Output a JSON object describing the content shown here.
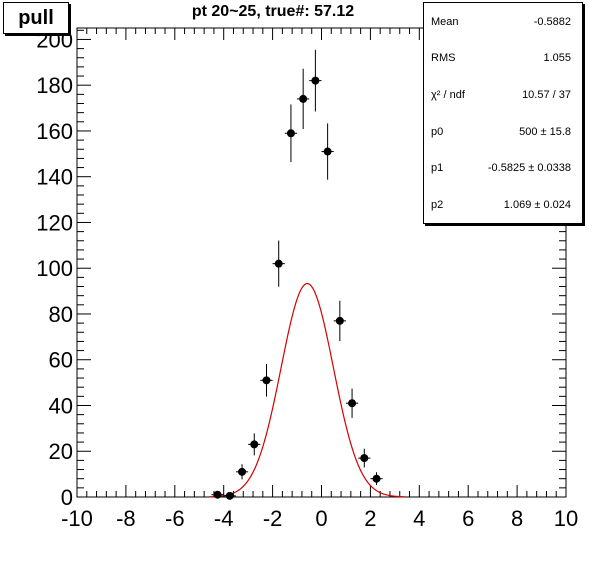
{
  "pad_label": "pull",
  "stats": {
    "rows": [
      {
        "label": "Mean",
        "value": "-0.5882"
      },
      {
        "label": "RMS",
        "value": "1.055"
      },
      {
        "label": "χ² / ndf",
        "value": "10.57 / 37"
      },
      {
        "label": "p0",
        "value": "500 ± 15.8"
      },
      {
        "label": "p1",
        "value": "-0.5825 ± 0.0338"
      },
      {
        "label": "p2",
        "value": "1.069 ± 0.024"
      }
    ]
  },
  "colors": {
    "fit_curve": "#d40000",
    "points": "#000000",
    "axes": "#000000"
  },
  "chart_data": {
    "type": "scatter",
    "title": "pt 20~25, true#: 57.12",
    "xlabel": "",
    "ylabel": "",
    "xlim": [
      -10,
      10
    ],
    "ylim": [
      0,
      205
    ],
    "x_ticks": [
      -10,
      -8,
      -6,
      -4,
      -2,
      0,
      2,
      4,
      6,
      8,
      10
    ],
    "y_ticks": [
      0,
      20,
      40,
      60,
      80,
      100,
      120,
      140,
      160,
      180,
      200
    ],
    "grid": false,
    "series": [
      {
        "x": [
          -4.25,
          -3.75,
          -3.25,
          -2.75,
          -2.25,
          -1.75,
          -1.25,
          -0.75,
          -0.25,
          0.25,
          0.75,
          1.25,
          1.75,
          2.25
        ],
        "y": [
          1,
          0.5,
          11,
          23,
          51,
          102,
          159,
          174,
          182,
          151,
          77,
          41,
          17,
          8
        ],
        "yerr": [
          1,
          0.7,
          3.3,
          4.8,
          7.1,
          10.1,
          12.6,
          13.2,
          13.5,
          12.3,
          8.8,
          6.4,
          4.1,
          2.8
        ],
        "xerr": 0.25
      }
    ],
    "fit": {
      "function": "gaus",
      "p0": 500,
      "p1": -0.5825,
      "p2": 1.069,
      "bin_width": 0.5
    }
  }
}
